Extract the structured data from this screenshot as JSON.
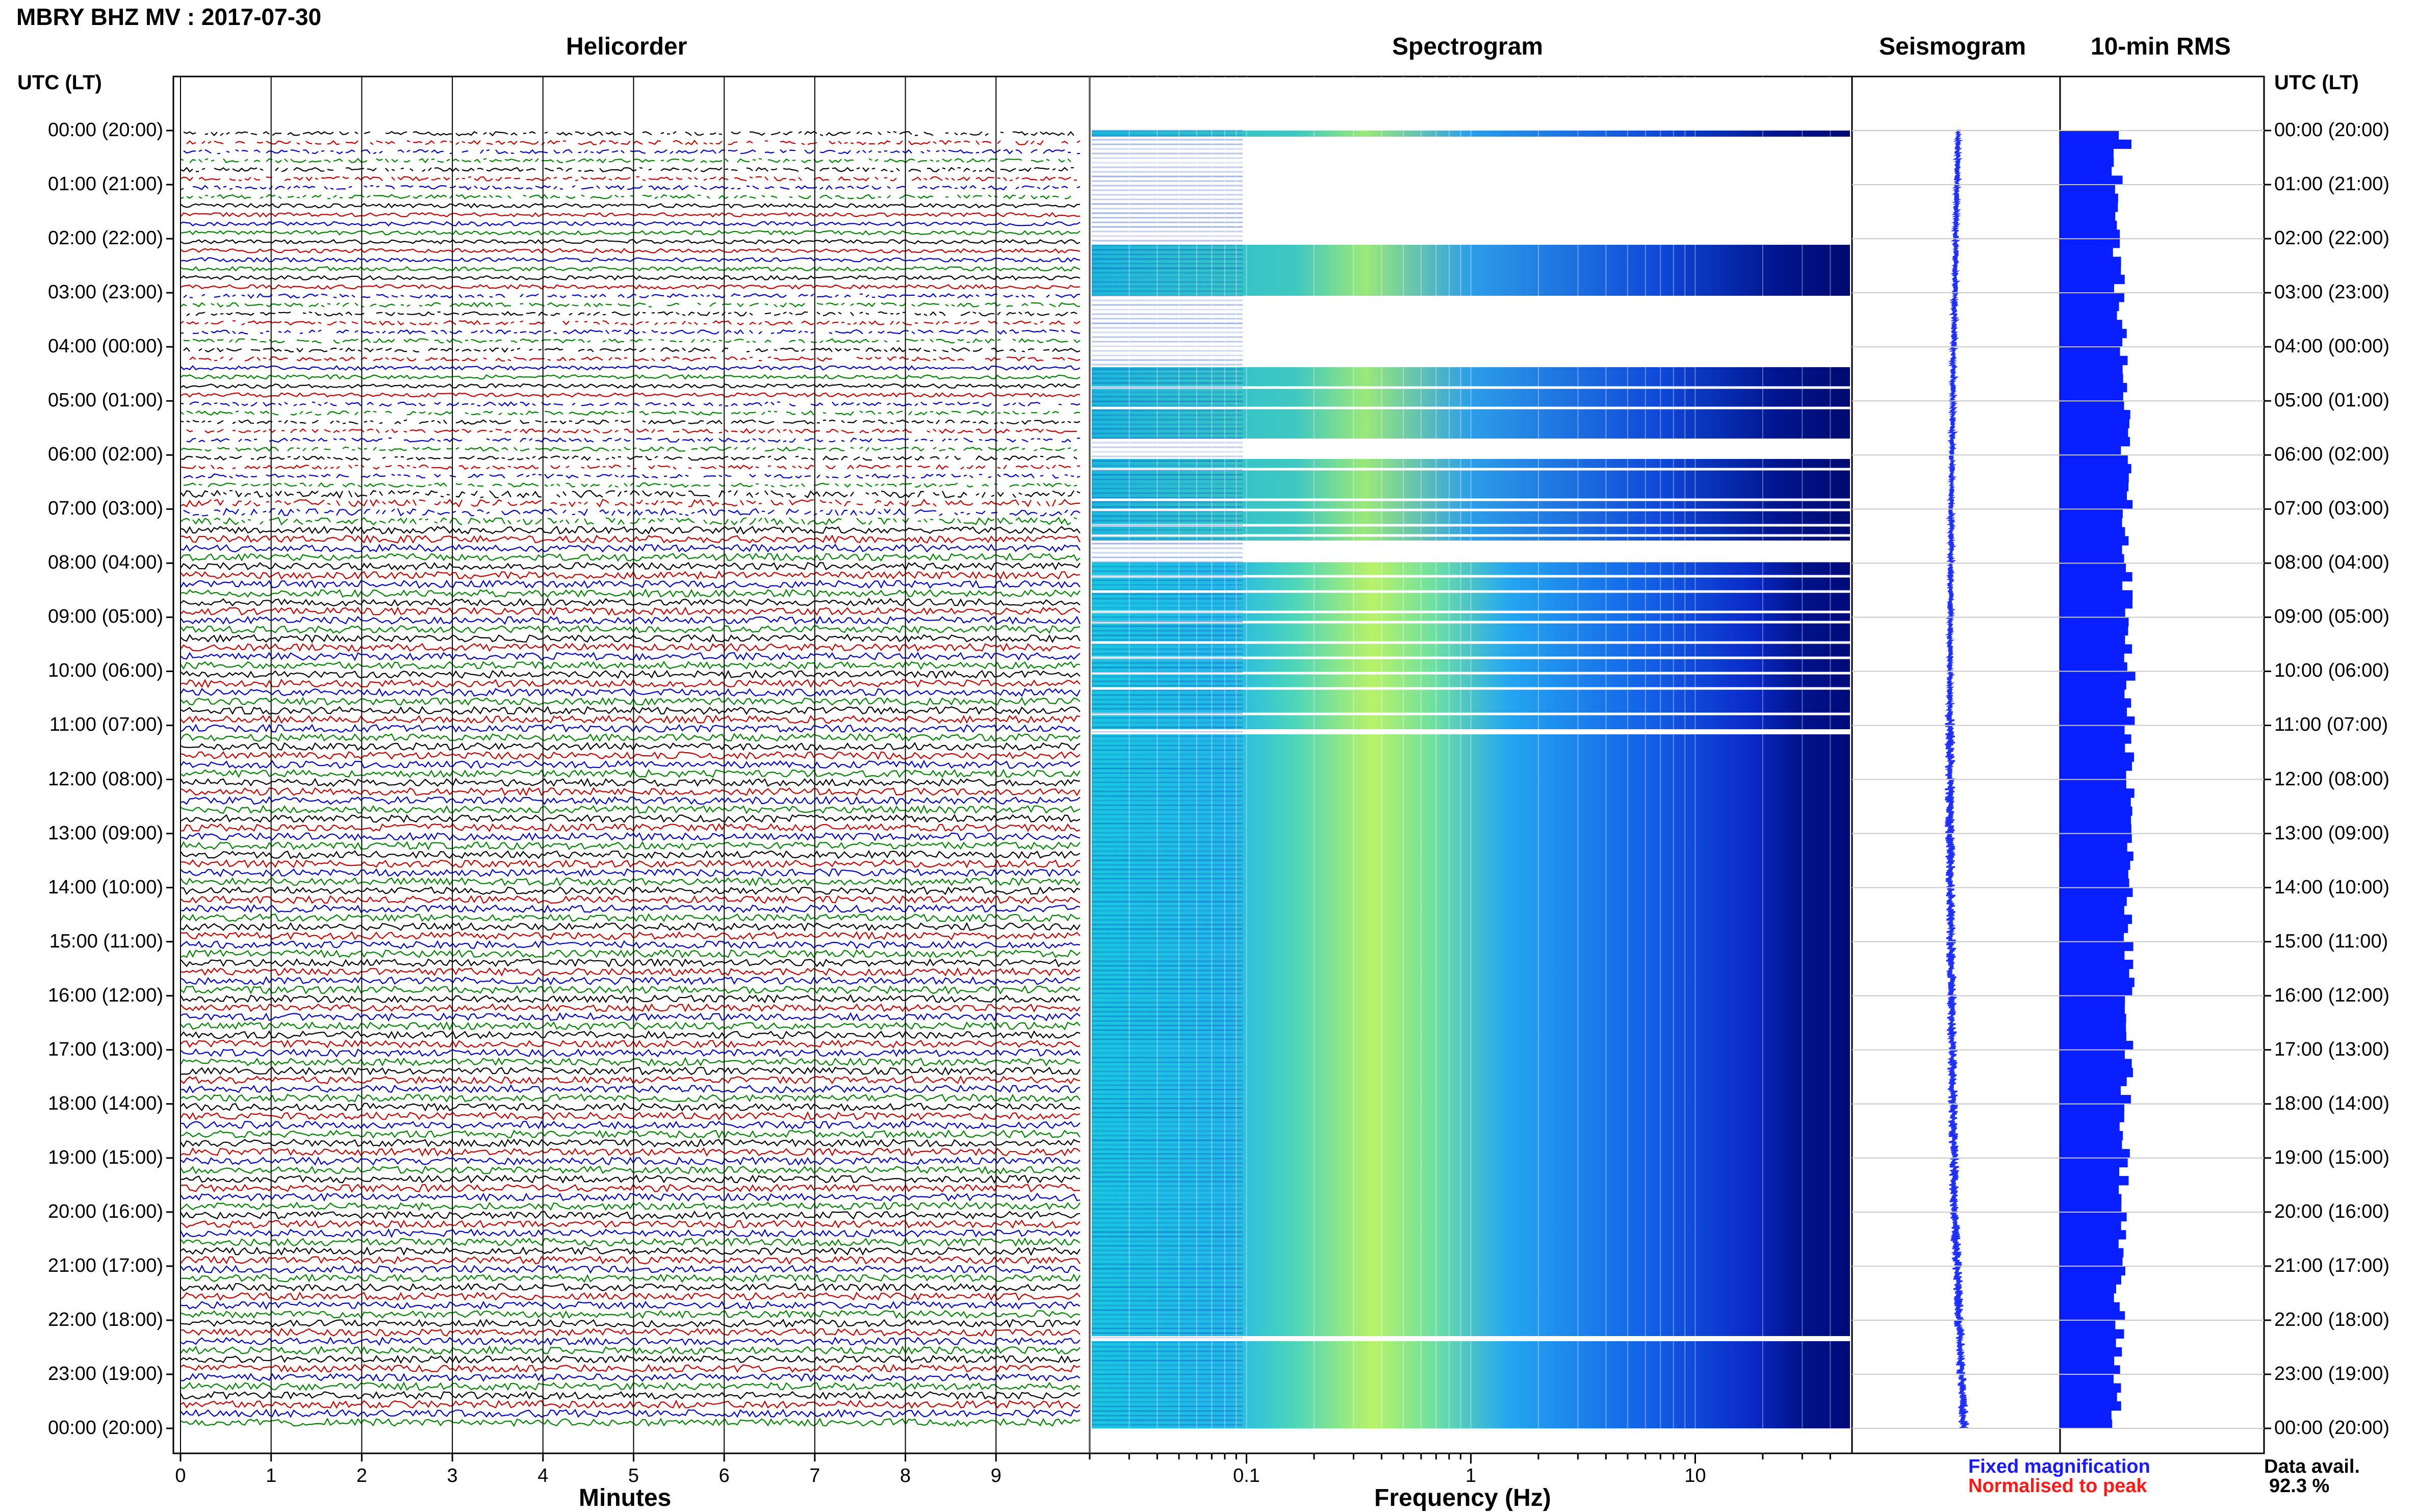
{
  "header": {
    "title": "MBRY BHZ MV : 2017-07-30"
  },
  "panels": {
    "helicorder": "Helicorder",
    "spectrogram": "Spectrogram",
    "seismogram": "Seismogram",
    "rms": "10-min RMS"
  },
  "axis": {
    "time_header": "UTC (LT)",
    "time_ticks": [
      "00:00 (20:00)",
      "01:00 (21:00)",
      "02:00 (22:00)",
      "03:00 (23:00)",
      "04:00 (00:00)",
      "05:00 (01:00)",
      "06:00 (02:00)",
      "07:00 (03:00)",
      "08:00 (04:00)",
      "09:00 (05:00)",
      "10:00 (06:00)",
      "11:00 (07:00)",
      "12:00 (08:00)",
      "13:00 (09:00)",
      "14:00 (10:00)",
      "15:00 (11:00)",
      "16:00 (12:00)",
      "17:00 (13:00)",
      "18:00 (14:00)",
      "19:00 (15:00)",
      "20:00 (16:00)",
      "21:00 (17:00)",
      "22:00 (18:00)",
      "23:00 (19:00)",
      "00:00 (20:00)"
    ],
    "minutes_label": "Minutes",
    "minutes_ticks": [
      "0",
      "1",
      "2",
      "3",
      "4",
      "5",
      "6",
      "7",
      "8",
      "9"
    ],
    "frequency_label": "Frequency (Hz)",
    "frequency_ticks": [
      "0.1",
      "1",
      "10"
    ]
  },
  "legend": {
    "fixed": "Fixed magnification",
    "normalised": "Normalised to peak",
    "fixed_color": "#0000ff",
    "normalised_color": "#ff0000"
  },
  "availability": {
    "label": "Data avail.",
    "value": "92.3 %"
  },
  "colors": {
    "trace_cycle": [
      "#000000",
      "#c00000",
      "#0000c0",
      "#008000"
    ],
    "rms_fill": "#0a1fff",
    "spectro_low": "#000080",
    "spectro_high": "#ffff40"
  }
}
